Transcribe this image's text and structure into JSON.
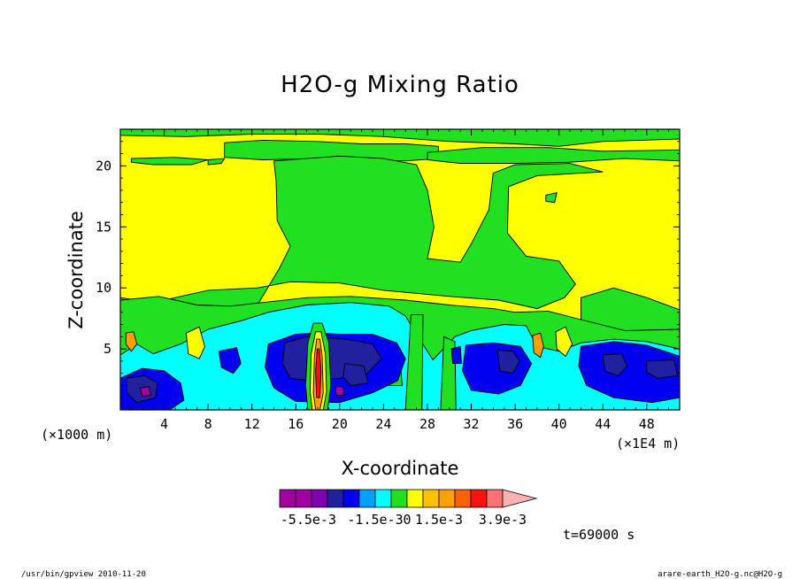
{
  "chart_data": {
    "type": "heatmap",
    "title": "H2O-g Mixing Ratio",
    "xlabel": "X-coordinate",
    "ylabel": "Z-coordinate",
    "x_unit": "(×1E4 m)",
    "y_unit": "(×1000 m)",
    "xlim": [
      0,
      51
    ],
    "ylim": [
      0,
      23
    ],
    "x_ticks": [
      4,
      8,
      12,
      16,
      20,
      24,
      28,
      32,
      36,
      40,
      44,
      48
    ],
    "y_ticks": [
      5,
      10,
      15,
      20
    ],
    "time_label": "t=69000 s",
    "colorbar": {
      "colors": [
        "#a000a0",
        "#a000a0",
        "#8000b0",
        "#2020a0",
        "#0000f0",
        "#00a0ff",
        "#00ffff",
        "#20e020",
        "#ffff00",
        "#ffc000",
        "#ffa000",
        "#ff6000",
        "#ff1010",
        "#ff7070",
        "#ffb0b0"
      ],
      "tick_labels": [
        "-5.5e-3",
        "-1.5e-3",
        "0",
        "1.5e-3",
        "3.9e-3"
      ]
    },
    "level_colors": {
      "deep_negative": "#a000a0",
      "very_negative": "#2020a0",
      "negative": "#0000f0",
      "slightly_negative": "#00ffff",
      "near_zero": "#20e020",
      "zero": "#ffff00",
      "positive": "#ffa000",
      "strong_positive": "#ff1010"
    }
  },
  "footer": {
    "left": "/usr/bin/gpview  2010-11-20",
    "right": "arare-earth_H2O-g.nc@H2O-g"
  }
}
